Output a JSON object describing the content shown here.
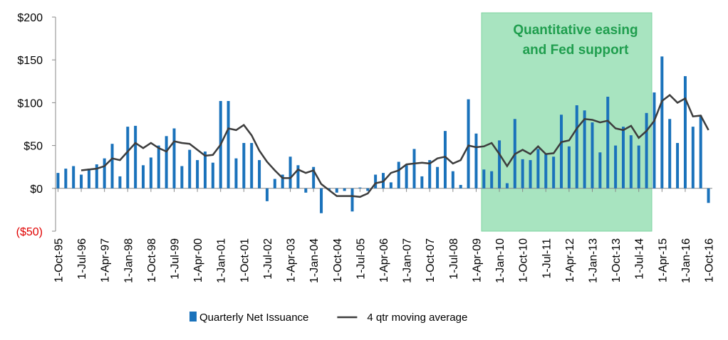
{
  "chart_data": {
    "type": "bar_line",
    "categories": [
      "1-Oct-95",
      null,
      null,
      "1-Jul-96",
      null,
      null,
      "1-Apr-97",
      null,
      null,
      "1-Jan-98",
      null,
      null,
      "1-Oct-98",
      null,
      null,
      "1-Jul-99",
      null,
      null,
      "1-Apr-00",
      null,
      null,
      "1-Jan-01",
      null,
      null,
      "1-Oct-01",
      null,
      null,
      "1-Jul-02",
      null,
      null,
      "1-Apr-03",
      null,
      null,
      "1-Jan-04",
      null,
      null,
      "1-Oct-04",
      null,
      null,
      "1-Jul-05",
      null,
      null,
      "1-Apr-06",
      null,
      null,
      "1-Jan-07",
      null,
      null,
      "1-Oct-07",
      null,
      null,
      "1-Jul-08",
      null,
      null,
      "1-Apr-09",
      null,
      null,
      "1-Jan-10",
      null,
      null,
      "1-Oct-10",
      null,
      null,
      "1-Jul-11",
      null,
      null,
      "1-Apr-12",
      null,
      null,
      "1-Jan-13",
      null,
      null,
      "1-Oct-13",
      null,
      null,
      "1-Jul-14",
      null,
      null,
      "1-Apr-15",
      null,
      null,
      "1-Jan-16",
      null,
      null,
      "1-Oct-16"
    ],
    "series": [
      {
        "name": "Quarterly Net Issuance",
        "type": "bar",
        "color": "#1a72bb",
        "values": [
          18,
          23,
          26,
          16,
          23,
          28,
          35,
          52,
          14,
          72,
          73,
          27,
          36,
          50,
          61,
          70,
          26,
          45,
          33,
          43,
          30,
          102,
          102,
          35,
          53,
          53,
          33,
          -15,
          11,
          16,
          37,
          27,
          -5,
          25,
          -29,
          -2,
          -5,
          -3,
          -27,
          1,
          -3,
          16,
          18,
          7,
          31,
          27,
          46,
          14,
          33,
          25,
          67,
          20,
          4,
          104,
          64,
          22,
          20,
          56,
          6,
          81,
          34,
          33,
          46,
          40,
          37,
          86,
          49,
          97,
          91,
          77,
          42,
          107,
          50,
          72,
          62,
          50,
          88,
          112,
          154,
          81,
          53,
          131,
          72,
          85,
          -17
        ]
      },
      {
        "name": "4 qtr moving average",
        "type": "line",
        "color": "#3d3d3d",
        "values": [
          null,
          null,
          null,
          21,
          22,
          23,
          26,
          35,
          33,
          43,
          53,
          47,
          53,
          47,
          43,
          55,
          53,
          52,
          45,
          38,
          39,
          51,
          70,
          68,
          74,
          62,
          44,
          31,
          21,
          12,
          12,
          22,
          18,
          21,
          5,
          -2,
          -9,
          -9,
          -9,
          -10,
          -6,
          6,
          8,
          18,
          21,
          28,
          29,
          30,
          29,
          35,
          37,
          29,
          33,
          50,
          48,
          49,
          53,
          40,
          26,
          40,
          45,
          40,
          49,
          40,
          41,
          54,
          56,
          70,
          81,
          80,
          77,
          79,
          70,
          68,
          73,
          59,
          67,
          79,
          102,
          109,
          100,
          105,
          84,
          85,
          68
        ]
      }
    ],
    "ylim": [
      -50,
      200
    ],
    "yticks": [
      {
        "value": -50,
        "label": "($50)"
      },
      {
        "value": 0,
        "label": "$0"
      },
      {
        "value": 50,
        "label": "$50"
      },
      {
        "value": 100,
        "label": "$100"
      },
      {
        "value": 150,
        "label": "$150"
      },
      {
        "value": 200,
        "label": "$200"
      }
    ],
    "annotation": [
      "Quantitative easing",
      "and Fed support"
    ],
    "legend": "bottom"
  }
}
